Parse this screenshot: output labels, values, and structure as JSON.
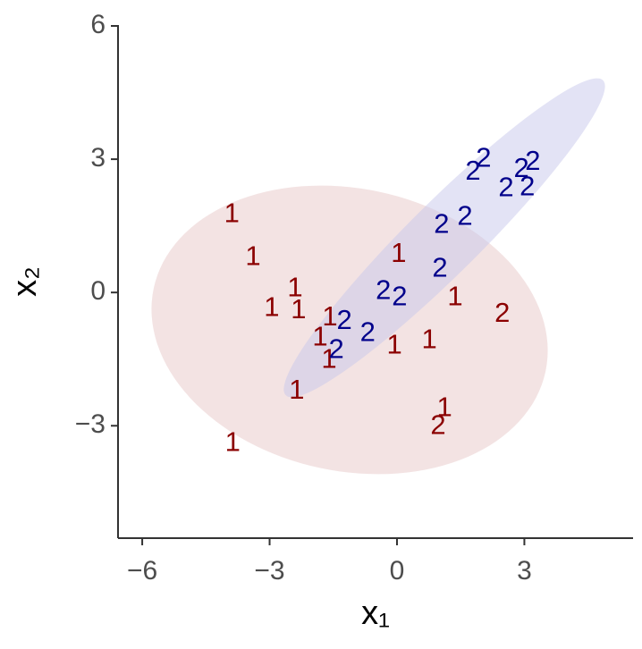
{
  "chart_data": {
    "type": "scatter",
    "xlabel": "x₁",
    "ylabel": "x₂",
    "xlim": [
      -6.57,
      5.56
    ],
    "ylim": [
      -5.53,
      6.02
    ],
    "xticks": [
      {
        "value": -6,
        "label": "−6"
      },
      {
        "value": -3,
        "label": "−3"
      },
      0,
      3
    ],
    "yticks": [
      {
        "value": -3,
        "label": "−3"
      },
      0,
      3,
      6
    ],
    "series": [
      {
        "color": "#8b0000",
        "x": [
          -3.89,
          -3.39,
          -2.4,
          -2.95,
          -2.32,
          -1.58,
          -1.81,
          -1.6,
          -2.36,
          -3.87,
          0.04,
          1.37,
          -0.06,
          0.76,
          1.12,
          2.48,
          0.97
        ],
        "y": [
          1.75,
          0.78,
          0.08,
          -0.36,
          -0.42,
          -0.58,
          -1.03,
          -1.53,
          -2.23,
          -3.4,
          0.85,
          -0.12,
          -1.21,
          -1.09,
          -2.62,
          -0.5,
          -3.02
        ],
        "labels": [
          "1",
          "1",
          "1",
          "1",
          "1",
          "1",
          "1",
          "1",
          "1",
          "1",
          "1",
          "1",
          "1",
          "1",
          "1",
          "2",
          "2"
        ]
      },
      {
        "color": "#00008b",
        "x": [
          2.04,
          1.79,
          2.93,
          3.2,
          2.57,
          3.07,
          1.05,
          1.6,
          1.01,
          -0.32,
          0.06,
          -1.24,
          -0.69,
          -1.43
        ],
        "y": [
          3.0,
          2.7,
          2.76,
          2.92,
          2.33,
          2.35,
          1.51,
          1.69,
          0.52,
          0.02,
          -0.12,
          -0.66,
          -0.93,
          -1.31
        ],
        "labels": [
          "2",
          "2",
          "2",
          "2",
          "2",
          "2",
          "2",
          "2",
          "2",
          "2",
          "2",
          "2",
          "2",
          "2"
        ]
      }
    ]
  }
}
